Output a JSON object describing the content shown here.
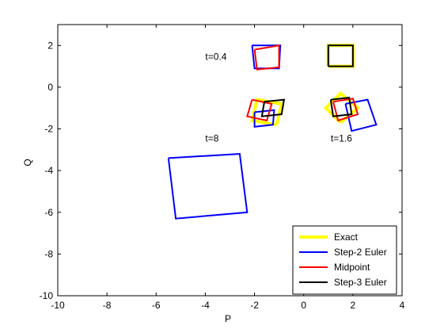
{
  "chart_data": {
    "type": "line",
    "title": "",
    "xlabel": "P",
    "ylabel": "Q",
    "xlim": [
      -10,
      4
    ],
    "ylim": [
      -10,
      3
    ],
    "xticks": [
      -10,
      -8,
      -6,
      -4,
      -2,
      0,
      2,
      4
    ],
    "yticks": [
      -10,
      -8,
      -6,
      -4,
      -2,
      0,
      2
    ],
    "grid": false,
    "legend_position": "bottom-right",
    "series": [
      {
        "name": "Exact",
        "color": "#ffff00",
        "polygons": [
          [
            [
              1.0,
              1.0
            ],
            [
              2.0,
              1.0
            ],
            [
              2.0,
              2.0
            ],
            [
              1.0,
              2.0
            ],
            [
              1.0,
              1.0
            ]
          ],
          [
            [
              -1.1,
              -1.8
            ],
            [
              -0.9,
              -0.8
            ],
            [
              -1.9,
              -0.6
            ],
            [
              -2.1,
              -1.6
            ],
            [
              -1.1,
              -1.8
            ]
          ],
          [
            [
              1.5,
              -1.7
            ],
            [
              2.2,
              -1.0
            ],
            [
              1.5,
              -0.3
            ],
            [
              0.9,
              -1.0
            ],
            [
              1.5,
              -1.7
            ]
          ]
        ]
      },
      {
        "name": "Step-2 Euler",
        "color": "#0000ff",
        "polygons": [
          [
            [
              -2.1,
              2.0
            ],
            [
              -0.95,
              2.0
            ],
            [
              -1.0,
              0.9
            ],
            [
              -2.0,
              0.9
            ],
            [
              -2.1,
              2.0
            ]
          ],
          [
            [
              -5.5,
              -3.4
            ],
            [
              -2.6,
              -3.2
            ],
            [
              -2.3,
              -6.0
            ],
            [
              -5.2,
              -6.3
            ],
            [
              -5.5,
              -3.4
            ]
          ],
          [
            [
              1.7,
              -0.8
            ],
            [
              2.6,
              -0.6
            ],
            [
              2.95,
              -1.8
            ],
            [
              1.95,
              -2.1
            ],
            [
              1.7,
              -0.8
            ]
          ],
          [
            [
              -2.0,
              -1.2
            ],
            [
              -1.2,
              -1.1
            ],
            [
              -1.25,
              -1.8
            ],
            [
              -2.0,
              -1.9
            ],
            [
              -2.0,
              -1.2
            ]
          ]
        ]
      },
      {
        "name": "Midpoint",
        "color": "#ff0000",
        "polygons": [
          [
            [
              -2.0,
              1.8
            ],
            [
              -1.0,
              2.0
            ],
            [
              -1.0,
              0.95
            ],
            [
              -1.9,
              0.85
            ],
            [
              -2.0,
              1.8
            ]
          ],
          [
            [
              -2.1,
              -0.6
            ],
            [
              -1.3,
              -0.8
            ],
            [
              -1.5,
              -1.6
            ],
            [
              -2.3,
              -1.4
            ],
            [
              -2.1,
              -0.6
            ]
          ],
          [
            [
              1.2,
              -0.7
            ],
            [
              2.0,
              -0.55
            ],
            [
              2.2,
              -1.3
            ],
            [
              1.4,
              -1.6
            ],
            [
              1.2,
              -0.7
            ]
          ]
        ]
      },
      {
        "name": "Step-3 Euler",
        "color": "#000000",
        "polygons": [
          [
            [
              1.0,
              1.0
            ],
            [
              2.0,
              1.0
            ],
            [
              2.0,
              2.0
            ],
            [
              1.0,
              2.0
            ],
            [
              1.0,
              1.0
            ]
          ],
          [
            [
              -1.6,
              -0.7
            ],
            [
              -0.8,
              -0.6
            ],
            [
              -0.9,
              -1.3
            ],
            [
              -1.7,
              -1.4
            ],
            [
              -1.6,
              -0.7
            ]
          ],
          [
            [
              1.1,
              -0.6
            ],
            [
              1.85,
              -0.5
            ],
            [
              1.95,
              -1.3
            ],
            [
              1.2,
              -1.4
            ],
            [
              1.1,
              -0.6
            ]
          ]
        ]
      }
    ],
    "annotations": [
      {
        "text": "t=0.4",
        "x": -4.0,
        "y": 1.3
      },
      {
        "text": "t=8",
        "x": -4.0,
        "y": -2.6
      },
      {
        "text": "t=1.6",
        "x": 1.1,
        "y": -2.6
      }
    ]
  }
}
